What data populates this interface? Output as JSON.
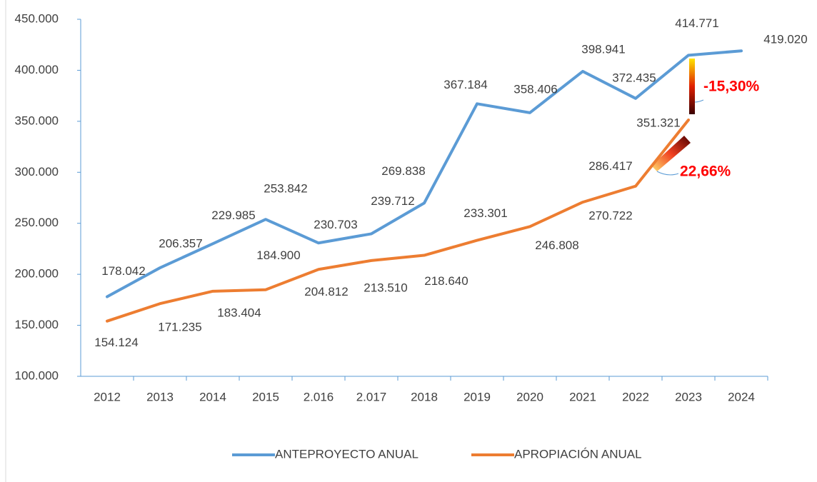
{
  "chart_data": {
    "type": "line",
    "categories": [
      "2012",
      "2013",
      "2014",
      "2015",
      "2.016",
      "2.017",
      "2018",
      "2019",
      "2020",
      "2021",
      "2022",
      "2023",
      "2024"
    ],
    "series": [
      {
        "name": "ANTEPROYECTO ANUAL",
        "color": "#5b9bd5",
        "values": [
          178042,
          206357,
          229985,
          253842,
          230703,
          239712,
          269838,
          367184,
          358406,
          398941,
          372435,
          414771,
          419020
        ],
        "value_labels": [
          "178.042",
          "206.357",
          "229.985",
          "253.842",
          "230.703",
          "239.712",
          "269.838",
          "367.184",
          "358.406",
          "398.941",
          "372.435",
          "414.771",
          "419.020"
        ]
      },
      {
        "name": "APROPIACIÓN ANUAL",
        "color": "#ed7d31",
        "values": [
          154124,
          171235,
          183404,
          184900,
          204812,
          213510,
          218640,
          233301,
          246808,
          270722,
          286417,
          351321,
          null
        ],
        "value_labels": [
          "154.124",
          "171.235",
          "183.404",
          "184.900",
          "204.812",
          "213.510",
          "218.640",
          "233.301",
          "246.808",
          "270.722",
          "286.417",
          "351.321",
          null
        ]
      }
    ],
    "ylim": [
      100000,
      450000
    ],
    "yticks": [
      {
        "value": 100000,
        "label": "100.000"
      },
      {
        "value": 150000,
        "label": "150.000"
      },
      {
        "value": 200000,
        "label": "200.000"
      },
      {
        "value": 250000,
        "label": "250.000"
      },
      {
        "value": 300000,
        "label": "300.000"
      },
      {
        "value": 350000,
        "label": "350.000"
      },
      {
        "value": 400000,
        "label": "400.000"
      },
      {
        "value": 450000,
        "label": "450.000"
      }
    ],
    "annotations": [
      "-15,30%",
      "22,66%"
    ],
    "legend": "bottom"
  }
}
